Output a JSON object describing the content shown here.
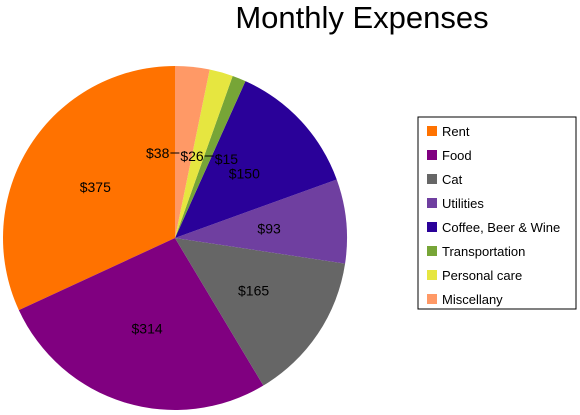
{
  "chart_data": {
    "type": "pie",
    "title": "Monthly Expenses",
    "value_prefix": "$",
    "legend_position": "right",
    "slices": [
      {
        "label": "Rent",
        "value": 375,
        "color": "#ff7200"
      },
      {
        "label": "Food",
        "value": 314,
        "color": "#800080"
      },
      {
        "label": "Cat",
        "value": 165,
        "color": "#666666"
      },
      {
        "label": "Utilities",
        "value": 93,
        "color": "#6f3fa0"
      },
      {
        "label": "Coffee, Beer & Wine",
        "value": 150,
        "color": "#2a0199"
      },
      {
        "label": "Transportation",
        "value": 15,
        "color": "#77a537"
      },
      {
        "label": "Personal care",
        "value": 26,
        "color": "#e6e640"
      },
      {
        "label": "Miscellany",
        "value": 38,
        "color": "#ff9966"
      }
    ]
  }
}
